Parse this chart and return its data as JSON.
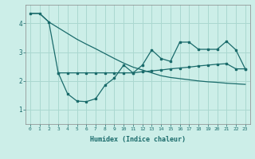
{
  "xlabel": "Humidex (Indice chaleur)",
  "background_color": "#cceee8",
  "grid_color": "#aad8d0",
  "line_color": "#1a6b6b",
  "xlim": [
    -0.5,
    23.5
  ],
  "ylim": [
    0.5,
    4.65
  ],
  "yticks": [
    1,
    2,
    3,
    4
  ],
  "xticks": [
    0,
    1,
    2,
    3,
    4,
    5,
    6,
    7,
    8,
    9,
    10,
    11,
    12,
    13,
    14,
    15,
    16,
    17,
    18,
    19,
    20,
    21,
    22,
    23
  ],
  "line1_x": [
    0,
    1,
    2,
    3,
    4,
    5,
    6,
    7,
    8,
    9,
    10,
    11,
    12,
    13,
    14,
    15,
    16,
    17,
    18,
    19,
    20,
    21,
    22,
    23
  ],
  "line1_y": [
    4.35,
    4.35,
    4.05,
    3.85,
    3.65,
    3.45,
    3.28,
    3.12,
    2.95,
    2.78,
    2.62,
    2.48,
    2.38,
    2.28,
    2.18,
    2.12,
    2.08,
    2.04,
    2.0,
    1.97,
    1.95,
    1.92,
    1.9,
    1.88
  ],
  "line2_x": [
    0,
    1,
    2,
    3,
    4,
    5,
    6,
    7,
    8,
    9,
    10,
    11,
    12,
    13,
    14,
    15,
    16,
    17,
    18,
    19,
    20,
    21,
    22,
    23
  ],
  "line2_y": [
    4.35,
    4.35,
    4.05,
    2.28,
    1.55,
    1.3,
    1.28,
    1.38,
    1.85,
    2.1,
    2.55,
    2.28,
    2.55,
    3.08,
    2.78,
    2.68,
    3.35,
    3.35,
    3.1,
    3.1,
    3.1,
    3.38,
    3.08,
    2.42
  ],
  "line3_x": [
    3,
    4,
    5,
    6,
    7,
    8,
    9,
    10,
    11,
    12,
    13,
    14,
    15,
    16,
    17,
    18,
    19,
    20,
    21,
    22,
    23
  ],
  "line3_y": [
    2.28,
    2.28,
    2.28,
    2.28,
    2.28,
    2.28,
    2.28,
    2.28,
    2.28,
    2.32,
    2.35,
    2.38,
    2.42,
    2.45,
    2.48,
    2.52,
    2.55,
    2.58,
    2.6,
    2.42,
    2.42
  ]
}
